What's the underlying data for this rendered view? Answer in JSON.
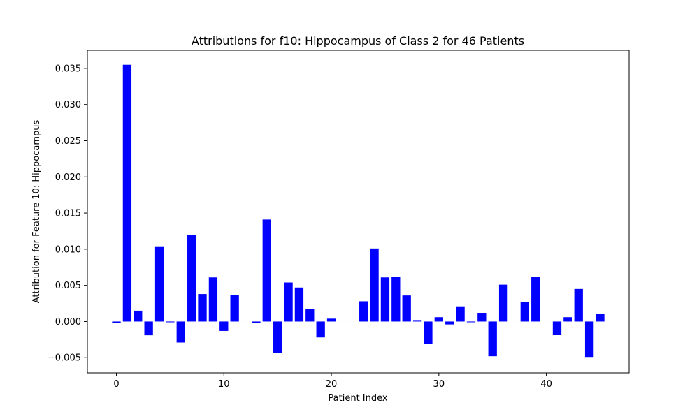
{
  "chart_data": {
    "type": "bar",
    "title": "Attributions for f10: Hippocampus of Class 2 for 46 Patients",
    "xlabel": "Patient Index",
    "ylabel": "Attribution for Feature 10: Hippocampus",
    "x": [
      0,
      1,
      2,
      3,
      4,
      5,
      6,
      7,
      8,
      9,
      10,
      11,
      12,
      13,
      14,
      15,
      16,
      17,
      18,
      19,
      20,
      21,
      22,
      23,
      24,
      25,
      26,
      27,
      28,
      29,
      30,
      31,
      32,
      33,
      34,
      35,
      36,
      37,
      38,
      39,
      40,
      41,
      42,
      43,
      44,
      45
    ],
    "values": [
      -0.0002,
      0.0355,
      0.0015,
      -0.0019,
      0.0104,
      -0.0001,
      -0.0029,
      0.012,
      0.0038,
      0.0061,
      -0.0013,
      0.0037,
      0.0,
      -0.0002,
      0.0141,
      -0.0043,
      0.0054,
      0.0047,
      0.0017,
      -0.0022,
      0.0004,
      0.0,
      0.0,
      0.0028,
      0.0101,
      0.0061,
      0.0062,
      0.0036,
      0.0002,
      -0.0031,
      0.0006,
      -0.0004,
      0.0021,
      -0.0001,
      0.0012,
      -0.0048,
      0.0051,
      0.0,
      0.0027,
      0.0062,
      0.0,
      -0.0018,
      0.0006,
      0.0045,
      -0.0049,
      0.0011
    ],
    "xlim": [
      -2.7,
      47.7
    ],
    "ylim": [
      -0.0071,
      0.0375
    ],
    "xticks": [
      0,
      10,
      20,
      30,
      40
    ],
    "xtick_labels": [
      "0",
      "10",
      "20",
      "30",
      "40"
    ],
    "yticks": [
      -0.005,
      0.0,
      0.005,
      0.01,
      0.015,
      0.02,
      0.025,
      0.03,
      0.035
    ],
    "ytick_labels": [
      "−0.005",
      "0.000",
      "0.005",
      "0.010",
      "0.015",
      "0.020",
      "0.025",
      "0.030",
      "0.035"
    ],
    "bar_color": "#0000ff",
    "grid": false,
    "legend": false
  }
}
